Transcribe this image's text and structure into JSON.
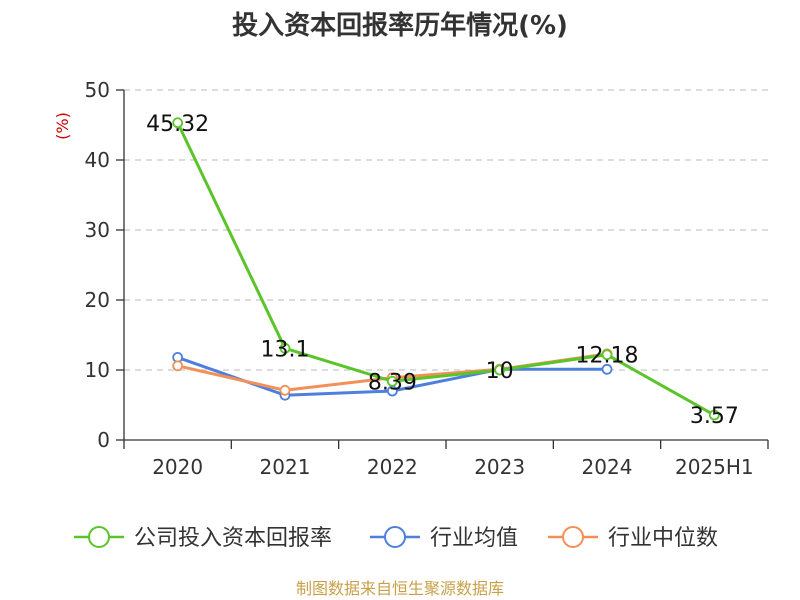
{
  "chart_data": {
    "type": "line",
    "title": "投入资本回报率历年情况(%)",
    "ylabel": "(%)",
    "xlabel": "",
    "categories": [
      "2020",
      "2021",
      "2022",
      "2023",
      "2024",
      "2025H1"
    ],
    "ylim": [
      0,
      50
    ],
    "yticks": [
      0,
      10,
      20,
      30,
      40,
      50
    ],
    "grid": "horizontal-dashed",
    "legend_position": "bottom",
    "series": [
      {
        "name": "公司投入资本回报率",
        "color": "#5bc42b",
        "values": [
          45.32,
          13.1,
          8.39,
          10,
          12.18,
          3.57
        ],
        "labels": [
          "45.32",
          "13.1",
          "8.39",
          "10",
          "12.18",
          "3.57"
        ]
      },
      {
        "name": "行业均值",
        "color": "#4f7fdd",
        "values": [
          11.8,
          6.4,
          7.0,
          10.1,
          10.1,
          null
        ]
      },
      {
        "name": "行业中位数",
        "color": "#f29058",
        "values": [
          10.6,
          7.1,
          8.9,
          10.1,
          12.3,
          null
        ]
      }
    ],
    "source": "制图数据来自恒生聚源数据库"
  }
}
